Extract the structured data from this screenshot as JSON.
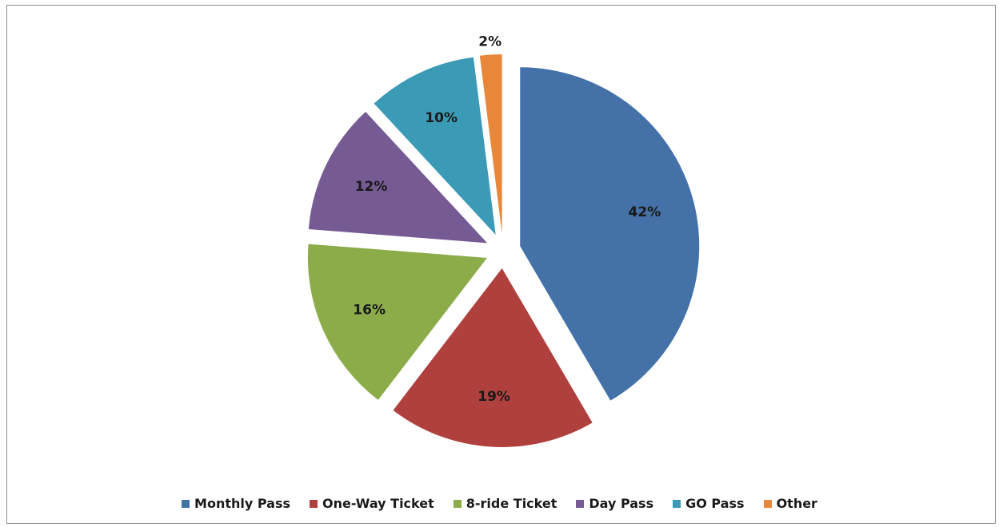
{
  "chart_data": {
    "type": "pie",
    "title": "",
    "categories": [
      "Monthly Pass",
      "One-Way Ticket",
      "8-ride Ticket",
      "Day Pass",
      "GO Pass",
      "Other"
    ],
    "values": [
      42,
      19,
      16,
      12,
      10,
      2
    ],
    "value_labels": [
      "42%",
      "19%",
      "16%",
      "12%",
      "10%",
      "2%"
    ],
    "colors": [
      "#4472a8",
      "#b0403d",
      "#8cac4a",
      "#765a94",
      "#3b9ab5",
      "#e8873a"
    ],
    "exploded": true,
    "legend_position": "bottom"
  }
}
